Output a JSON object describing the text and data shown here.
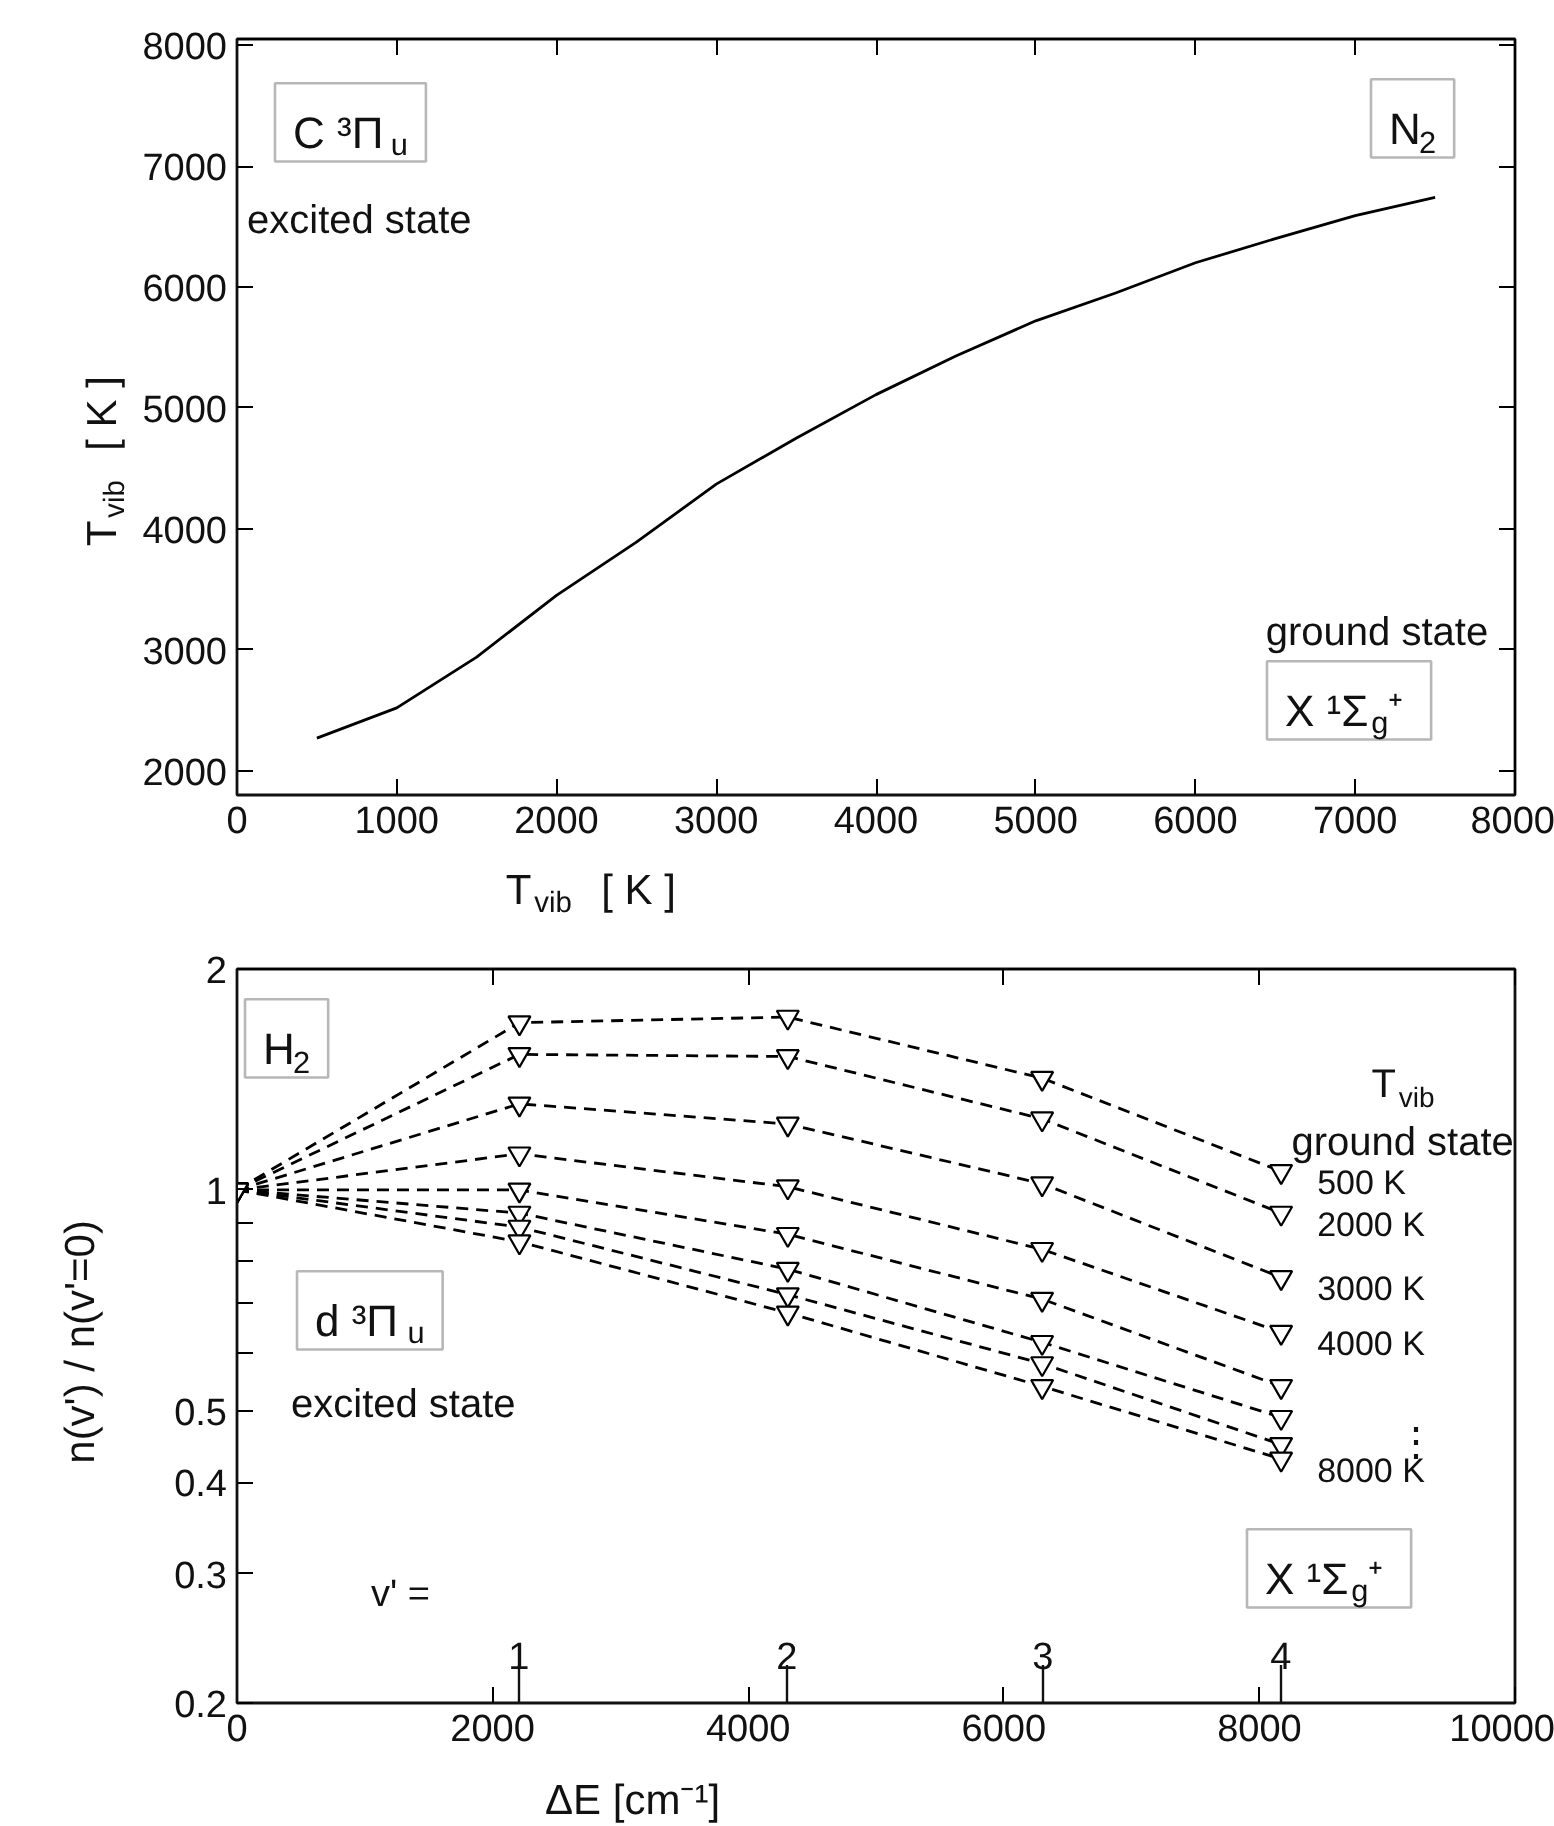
{
  "chart_data": [
    {
      "type": "line",
      "xlabel": "T$_{vib}$  [ K ]",
      "ylabel": "T$_{vib}$  [ K ]",
      "annotations": [
        "C ³Π$_{u}$",
        "excited state",
        "N$_{2}$",
        "ground state",
        "X ¹Σ$_{g}$⁺"
      ],
      "x": [
        500,
        1000,
        1500,
        2000,
        2500,
        3000,
        3500,
        4000,
        4500,
        5000,
        5500,
        6000,
        6500,
        7000,
        7500
      ],
      "series": [
        {
          "color": "#000000",
          "values": [
            2270,
            2520,
            2940,
            3450,
            3890,
            4370,
            4750,
            5110,
            5430,
            5720,
            5950,
            6200,
            6400,
            6590,
            6740
          ]
        }
      ],
      "xlim": [
        0,
        8000
      ],
      "ylim": [
        1800,
        8050
      ],
      "xticks": [
        0,
        1000,
        2000,
        3000,
        4000,
        5000,
        6000,
        7000,
        8000
      ],
      "yticks": [
        2000,
        3000,
        4000,
        5000,
        6000,
        7000,
        8000
      ],
      "line_style": "solid"
    },
    {
      "type": "line",
      "xlabel": "ΔE  [cm⁻¹]",
      "ylabel": "n(v') / n(v'=0)",
      "legend_title": "T$_{vib}$\nground state",
      "annotations": [
        "H$_{2}$",
        "d ³Π$_{u}$",
        "excited state",
        "v' =",
        "⋮",
        "X ¹Σ$_{g}$⁺",
        "1",
        "2",
        "3",
        "4"
      ],
      "x": [
        0,
        2210,
        4310,
        6300,
        8170
      ],
      "series": [
        {
          "name": "500 K",
          "color": "#000000",
          "values": [
            1,
            1.69,
            1.72,
            1.42,
            1.06
          ]
        },
        {
          "name": "2000 K",
          "color": "#000000",
          "values": [
            1,
            1.53,
            1.52,
            1.25,
            0.93
          ]
        },
        {
          "name": "3000 K",
          "color": "#000000",
          "values": [
            1,
            1.31,
            1.23,
            1.02,
            0.76
          ]
        },
        {
          "name": "4000 K",
          "color": "#000000",
          "values": [
            1,
            1.12,
            1.01,
            0.83,
            0.64
          ]
        },
        {
          "color": "#000000",
          "values": [
            1,
            1.0,
            0.87,
            0.71,
            0.54
          ]
        },
        {
          "color": "#000000",
          "values": [
            1,
            0.93,
            0.78,
            0.62,
            0.49
          ]
        },
        {
          "color": "#000000",
          "values": [
            1,
            0.89,
            0.72,
            0.58,
            0.45
          ]
        },
        {
          "name": "8000 K",
          "color": "#000000",
          "values": [
            1,
            0.85,
            0.68,
            0.54,
            0.43
          ]
        }
      ],
      "log": "y",
      "xlim": [
        0,
        10000
      ],
      "ylim": [
        0.2,
        2
      ],
      "xticks": [
        0,
        2000,
        4000,
        6000,
        8000,
        10000
      ],
      "yticks": [
        0.2,
        0.3,
        0.4,
        0.5,
        {
          "value": 0.6,
          "label": null
        },
        {
          "value": 0.7,
          "label": null
        },
        {
          "value": 0.8,
          "label": null
        },
        {
          "value": 0.9,
          "label": null
        },
        1,
        2
      ],
      "marker": "triangle",
      "line_style": "dashed"
    }
  ]
}
